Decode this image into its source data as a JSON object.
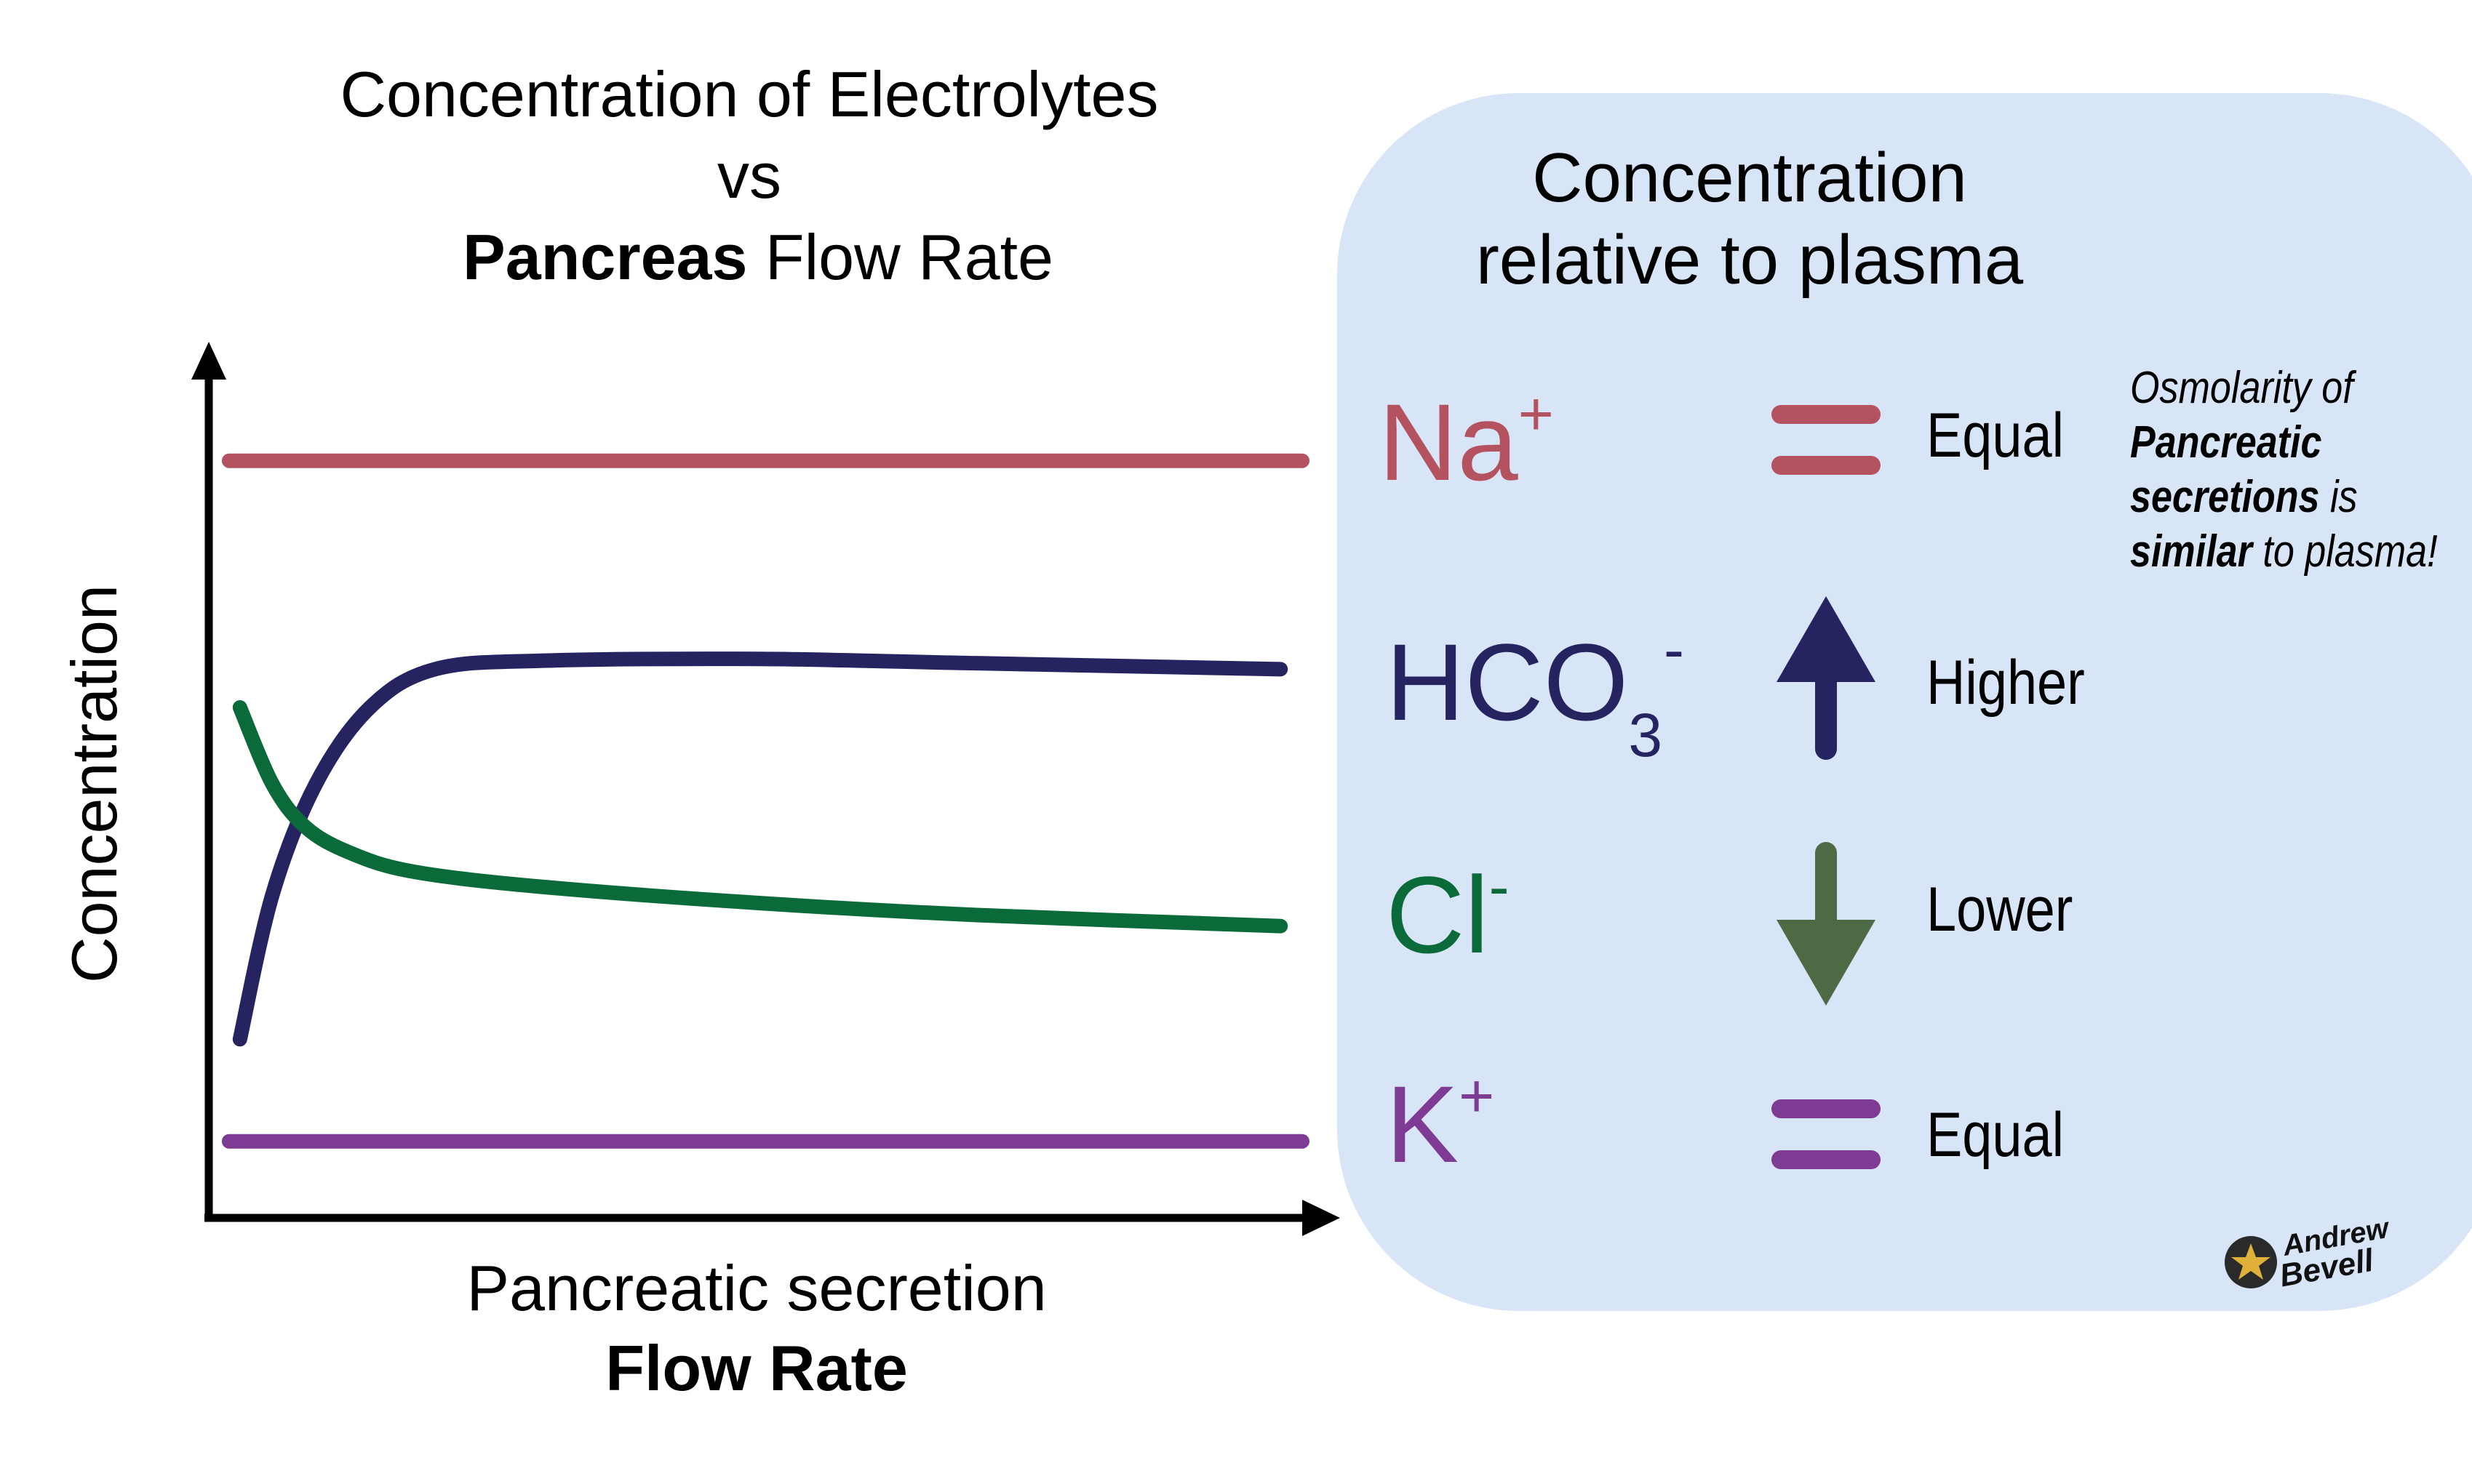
{
  "chart_data": {
    "type": "line",
    "title": "Concentration of Electrolytes",
    "title_line2": "vs",
    "title_line3_bold": "Pancreas",
    "title_line3_rest": " Flow Rate",
    "ylabel": "Concentration",
    "xlabel_line1": "Pancreatic secretion",
    "xlabel_line2_bold": "Flow Rate",
    "xlim": [
      0,
      100
    ],
    "ylim": [
      0,
      100
    ],
    "grid": false,
    "series": [
      {
        "id": "na",
        "color": "#b5525f",
        "points": [
          [
            1,
            89
          ],
          [
            100,
            89
          ]
        ]
      },
      {
        "id": "hco3",
        "color": "#262460",
        "points": [
          [
            2,
            21
          ],
          [
            5,
            38
          ],
          [
            9,
            51
          ],
          [
            14,
            60
          ],
          [
            20,
            64.5
          ],
          [
            30,
            65.5
          ],
          [
            50,
            65.7
          ],
          [
            70,
            65.2
          ],
          [
            98,
            64.5
          ]
        ]
      },
      {
        "id": "cl",
        "color": "#0b6a3a",
        "points": [
          [
            2,
            60
          ],
          [
            5,
            51
          ],
          [
            8,
            46
          ],
          [
            12,
            43
          ],
          [
            18,
            40.7
          ],
          [
            30,
            38.9
          ],
          [
            50,
            37
          ],
          [
            70,
            35.6
          ],
          [
            98,
            34.3
          ]
        ]
      },
      {
        "id": "k",
        "color": "#7e3b94",
        "points": [
          [
            1,
            9
          ],
          [
            100,
            9
          ]
        ]
      }
    ]
  },
  "panel": {
    "title_line1": "Concentration",
    "title_line2": "relative to plasma",
    "background": "#d7e5f6",
    "ions": [
      {
        "base": "Na",
        "sup": "+",
        "sub": "",
        "color": "#b5525f",
        "indicator": "equal",
        "indicator_color": "#b5525f",
        "label": "Equal"
      },
      {
        "base": "HCO",
        "sup": "-",
        "sub": "3",
        "color": "#262460",
        "indicator": "arrow-up",
        "indicator_color": "#262460",
        "label": "Higher"
      },
      {
        "base": "Cl",
        "sup": "-",
        "sub": "",
        "color": "#0b6a3a",
        "indicator": "arrow-down",
        "indicator_color": "#4e6a45",
        "label": "Lower"
      },
      {
        "base": "K",
        "sup": "+",
        "sub": "",
        "color": "#7e3b94",
        "indicator": "equal",
        "indicator_color": "#7e3b94",
        "label": "Equal"
      }
    ],
    "note": {
      "line1": "Osmolarity of",
      "line2_bold": "Pancreatic",
      "line3_bold": "secretions",
      "line3_rest": " is",
      "line4_bold": "similar",
      "line4_rest": " to plasma!"
    },
    "signature": {
      "line1": "Andrew",
      "line2": "Bevell",
      "badge_color": "#2a2a2a",
      "star_color": "#e0b13a"
    }
  }
}
